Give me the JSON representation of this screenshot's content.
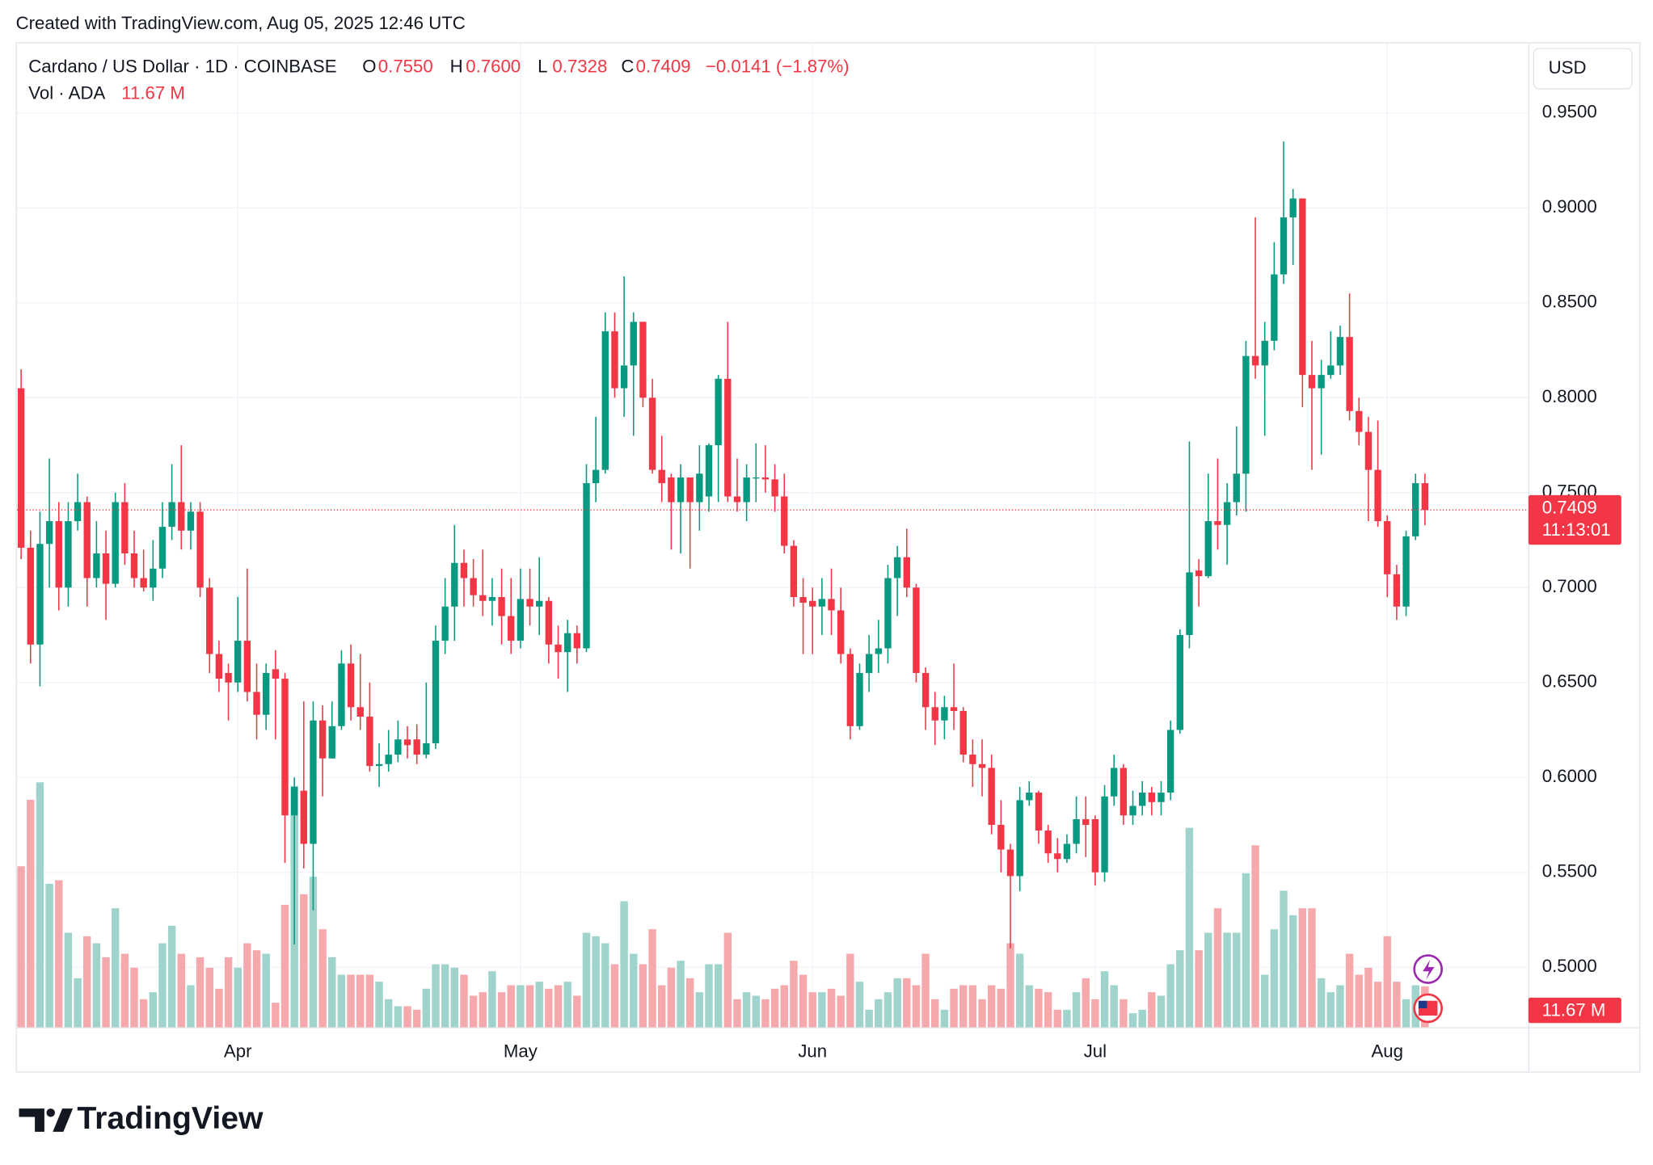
{
  "watermark": "Created with TradingView.com, Aug 05, 2025 12:46 UTC",
  "legend": {
    "symbol": "Cardano / US Dollar · 1D · COINBASE",
    "open_label": "O",
    "open": "0.7550",
    "high_label": "H",
    "high": "0.7600",
    "low_label": "L",
    "low": "0.7328",
    "close_label": "C",
    "close": "0.7409",
    "change": "−0.0141 (−1.87%)",
    "volume_label": "Vol · ADA",
    "volume": "11.67 M"
  },
  "currency": "USD",
  "last_price_label": "0.7409",
  "countdown": "11:13:01",
  "last_volume_label": "11.67 M",
  "brand": "TradingView",
  "chart_data": {
    "type": "candlestick",
    "categories": [
      null,
      null,
      null,
      null,
      null,
      null,
      null,
      null,
      null,
      null,
      null,
      null,
      null,
      null,
      null,
      null,
      null,
      null,
      null,
      null,
      null,
      null,
      null,
      "Apr",
      null,
      null,
      null,
      null,
      null,
      null,
      null,
      null,
      null,
      null,
      null,
      null,
      null,
      null,
      null,
      null,
      null,
      null,
      null,
      null,
      null,
      null,
      null,
      null,
      null,
      null,
      null,
      null,
      null,
      "May",
      null,
      null,
      null,
      null,
      null,
      null,
      null,
      null,
      null,
      null,
      null,
      null,
      null,
      null,
      null,
      null,
      null,
      null,
      null,
      null,
      null,
      null,
      null,
      null,
      null,
      null,
      null,
      null,
      null,
      null,
      "Jun",
      null,
      null,
      null,
      null,
      null,
      null,
      null,
      null,
      null,
      null,
      null,
      null,
      null,
      null,
      null,
      null,
      null,
      null,
      null,
      null,
      null,
      null,
      null,
      null,
      null,
      null,
      null,
      null,
      null,
      "Jul",
      null,
      null,
      null,
      null,
      null,
      null,
      null,
      null,
      null,
      null,
      null,
      null,
      null,
      null,
      null,
      null,
      null,
      null,
      null,
      null,
      null,
      null,
      null,
      null,
      null,
      null,
      null,
      null,
      null,
      null,
      "Aug",
      null,
      null,
      null,
      null
    ],
    "open": [
      0.805,
      0.721,
      0.67,
      0.723,
      0.735,
      0.7,
      0.735,
      0.745,
      0.705,
      0.718,
      0.702,
      0.745,
      0.718,
      0.705,
      0.7,
      0.71,
      0.732,
      0.745,
      0.73,
      0.74,
      0.7,
      0.665,
      0.655,
      0.65,
      0.672,
      0.645,
      0.633,
      0.657,
      0.652,
      0.58,
      0.593,
      0.565,
      0.63,
      0.61,
      0.627,
      0.66,
      0.637,
      0.632,
      0.606,
      0.607,
      0.612,
      0.62,
      0.62,
      0.612,
      0.618,
      0.672,
      0.69,
      0.713,
      0.705,
      0.696,
      0.693,
      0.695,
      0.685,
      0.672,
      0.694,
      0.69,
      0.693,
      0.67,
      0.666,
      0.676,
      0.668,
      0.755,
      0.762,
      0.835,
      0.805,
      0.817,
      0.84,
      0.8,
      0.762,
      0.758,
      0.745,
      0.758,
      0.745,
      0.748,
      0.775,
      0.81,
      0.748,
      0.745,
      0.758,
      0.758,
      0.757,
      0.748,
      0.722,
      0.695,
      0.693,
      0.69,
      0.694,
      0.688,
      0.665,
      0.627,
      0.655,
      0.665,
      0.668,
      0.705,
      0.716,
      0.7,
      0.655,
      0.637,
      0.63,
      0.637,
      0.635,
      0.612,
      0.607,
      0.605,
      0.575,
      0.562,
      0.548,
      0.588,
      0.592,
      0.572,
      0.56,
      0.557,
      0.565,
      0.578,
      0.578,
      0.55,
      0.59,
      0.605,
      0.58,
      0.585,
      0.592,
      0.587,
      0.592,
      0.625,
      0.675,
      0.709,
      0.706,
      0.735,
      0.733,
      0.745,
      0.76,
      0.822,
      0.817,
      0.83,
      0.865,
      0.895,
      0.905,
      0.812,
      0.805,
      0.812,
      0.817,
      0.832,
      0.793,
      0.782,
      0.762,
      0.735,
      0.707,
      0.69,
      0.727,
      0.755
    ],
    "high": [
      0.815,
      0.73,
      0.74,
      0.768,
      0.745,
      0.745,
      0.76,
      0.748,
      0.735,
      0.73,
      0.75,
      0.755,
      0.73,
      0.72,
      0.725,
      0.745,
      0.765,
      0.775,
      0.745,
      0.745,
      0.705,
      0.672,
      0.66,
      0.695,
      0.71,
      0.66,
      0.66,
      0.667,
      0.655,
      0.6,
      0.64,
      0.64,
      0.638,
      0.64,
      0.667,
      0.67,
      0.665,
      0.65,
      0.618,
      0.625,
      0.63,
      0.627,
      0.628,
      0.65,
      0.68,
      0.705,
      0.733,
      0.72,
      0.715,
      0.72,
      0.705,
      0.71,
      0.705,
      0.71,
      0.71,
      0.716,
      0.695,
      0.68,
      0.683,
      0.68,
      0.765,
      0.79,
      0.845,
      0.845,
      0.864,
      0.845,
      0.84,
      0.81,
      0.78,
      0.76,
      0.765,
      0.758,
      0.775,
      0.776,
      0.812,
      0.84,
      0.768,
      0.765,
      0.776,
      0.775,
      0.765,
      0.76,
      0.725,
      0.705,
      0.7,
      0.705,
      0.71,
      0.7,
      0.668,
      0.66,
      0.675,
      0.683,
      0.712,
      0.722,
      0.731,
      0.702,
      0.658,
      0.645,
      0.643,
      0.66,
      0.637,
      0.62,
      0.62,
      0.612,
      0.588,
      0.565,
      0.595,
      0.598,
      0.593,
      0.575,
      0.568,
      0.57,
      0.59,
      0.59,
      0.58,
      0.596,
      0.612,
      0.607,
      0.593,
      0.598,
      0.595,
      0.598,
      0.63,
      0.678,
      0.777,
      0.715,
      0.76,
      0.768,
      0.755,
      0.785,
      0.83,
      0.895,
      0.84,
      0.882,
      0.935,
      0.91,
      0.905,
      0.83,
      0.82,
      0.835,
      0.838,
      0.855,
      0.8,
      0.79,
      0.788,
      0.738,
      0.712,
      0.73,
      0.76,
      0.76
    ],
    "low": [
      0.715,
      0.66,
      0.648,
      0.7,
      0.688,
      0.69,
      0.73,
      0.69,
      0.7,
      0.683,
      0.7,
      0.712,
      0.7,
      0.698,
      0.693,
      0.705,
      0.725,
      0.72,
      0.72,
      0.695,
      0.655,
      0.645,
      0.63,
      0.645,
      0.64,
      0.62,
      0.625,
      0.62,
      0.555,
      0.512,
      0.552,
      0.53,
      0.59,
      0.61,
      0.625,
      0.63,
      0.625,
      0.603,
      0.595,
      0.603,
      0.608,
      0.61,
      0.607,
      0.61,
      0.615,
      0.665,
      0.672,
      0.69,
      0.69,
      0.685,
      0.68,
      0.67,
      0.665,
      0.668,
      0.68,
      0.675,
      0.66,
      0.652,
      0.645,
      0.66,
      0.666,
      0.745,
      0.76,
      0.8,
      0.79,
      0.78,
      0.795,
      0.76,
      0.745,
      0.72,
      0.718,
      0.71,
      0.73,
      0.74,
      0.745,
      0.745,
      0.74,
      0.735,
      0.745,
      0.75,
      0.74,
      0.718,
      0.69,
      0.665,
      0.665,
      0.675,
      0.675,
      0.66,
      0.62,
      0.625,
      0.645,
      0.655,
      0.66,
      0.685,
      0.695,
      0.65,
      0.625,
      0.617,
      0.62,
      0.625,
      0.608,
      0.595,
      0.59,
      0.57,
      0.55,
      0.51,
      0.54,
      0.585,
      0.565,
      0.555,
      0.55,
      0.555,
      0.56,
      0.558,
      0.543,
      0.545,
      0.585,
      0.575,
      0.575,
      0.58,
      0.58,
      0.58,
      0.588,
      0.623,
      0.668,
      0.69,
      0.705,
      0.72,
      0.712,
      0.738,
      0.74,
      0.81,
      0.78,
      0.825,
      0.86,
      0.87,
      0.795,
      0.762,
      0.77,
      0.81,
      0.812,
      0.788,
      0.775,
      0.735,
      0.732,
      0.695,
      0.683,
      0.685,
      0.725,
      0.7328
    ],
    "close": [
      0.721,
      0.67,
      0.723,
      0.735,
      0.7,
      0.735,
      0.745,
      0.705,
      0.718,
      0.702,
      0.745,
      0.718,
      0.705,
      0.7,
      0.71,
      0.732,
      0.745,
      0.73,
      0.74,
      0.7,
      0.665,
      0.652,
      0.65,
      0.672,
      0.645,
      0.633,
      0.655,
      0.652,
      0.58,
      0.595,
      0.565,
      0.63,
      0.61,
      0.627,
      0.66,
      0.637,
      0.632,
      0.606,
      0.607,
      0.612,
      0.62,
      0.617,
      0.612,
      0.618,
      0.672,
      0.69,
      0.713,
      0.705,
      0.696,
      0.693,
      0.695,
      0.685,
      0.672,
      0.694,
      0.69,
      0.693,
      0.67,
      0.666,
      0.676,
      0.668,
      0.755,
      0.762,
      0.835,
      0.805,
      0.817,
      0.84,
      0.8,
      0.762,
      0.755,
      0.745,
      0.758,
      0.745,
      0.76,
      0.775,
      0.81,
      0.748,
      0.745,
      0.758,
      0.758,
      0.757,
      0.748,
      0.722,
      0.695,
      0.692,
      0.69,
      0.694,
      0.688,
      0.665,
      0.627,
      0.655,
      0.665,
      0.668,
      0.705,
      0.716,
      0.7,
      0.655,
      0.637,
      0.63,
      0.637,
      0.635,
      0.612,
      0.607,
      0.605,
      0.575,
      0.562,
      0.548,
      0.588,
      0.592,
      0.572,
      0.56,
      0.557,
      0.565,
      0.578,
      0.575,
      0.55,
      0.59,
      0.605,
      0.58,
      0.585,
      0.592,
      0.587,
      0.592,
      0.625,
      0.675,
      0.708,
      0.706,
      0.735,
      0.733,
      0.745,
      0.76,
      0.822,
      0.817,
      0.83,
      0.865,
      0.895,
      0.905,
      0.812,
      0.805,
      0.812,
      0.817,
      0.832,
      0.793,
      0.782,
      0.762,
      0.735,
      0.707,
      0.69,
      0.727,
      0.755,
      0.7409
    ],
    "volume": [
      46,
      65,
      70,
      41,
      42,
      27,
      14,
      26,
      24,
      20,
      34,
      21,
      17,
      8,
      10,
      24,
      29,
      21,
      12,
      20,
      17,
      11,
      20,
      17,
      24,
      22,
      21,
      7,
      35,
      69,
      38,
      43,
      28,
      20,
      15,
      15,
      15,
      15,
      13,
      8,
      6,
      6,
      5,
      11,
      18,
      18,
      17,
      15,
      9,
      10,
      16,
      10,
      12,
      12,
      12,
      13,
      11,
      12,
      13,
      9,
      27,
      26,
      24,
      18,
      36,
      21,
      18,
      28,
      12,
      17,
      19,
      14,
      10,
      18,
      18,
      27,
      8,
      10,
      9,
      8,
      11,
      12,
      19,
      15,
      10,
      10,
      11,
      9,
      21,
      13,
      5,
      8,
      10,
      14,
      14,
      12,
      21,
      8,
      5,
      11,
      12,
      12,
      8,
      12,
      11,
      24,
      21,
      12,
      11,
      10,
      5,
      5,
      10,
      14,
      8,
      16,
      12,
      8,
      4,
      5,
      10,
      9,
      18,
      22,
      57,
      22,
      27,
      34,
      27,
      27,
      44,
      52,
      15,
      28,
      39,
      32,
      34,
      34,
      14,
      10,
      12,
      21,
      15,
      17,
      13,
      26,
      13,
      8,
      12,
      11.67
    ],
    "ylim": [
      0.4684,
      0.9845
    ],
    "yticks": [
      {
        "value": 0.5,
        "label": "0.5000"
      },
      {
        "value": 0.55,
        "label": "0.5500"
      },
      {
        "value": 0.6,
        "label": "0.6000"
      },
      {
        "value": 0.65,
        "label": "0.6500"
      },
      {
        "value": 0.7,
        "label": "0.7000"
      },
      {
        "value": 0.75,
        "label": "0.7500"
      },
      {
        "value": 0.8,
        "label": "0.8000"
      },
      {
        "value": 0.85,
        "label": "0.8500"
      },
      {
        "value": 0.9,
        "label": "0.9000"
      },
      {
        "value": 0.95,
        "label": "0.9500"
      }
    ],
    "last_price": 0.7409,
    "up_color": "#089981",
    "down_color": "#f23645",
    "up_volume_color": "#9fd3cc",
    "down_volume_color": "#f5a9ad",
    "grid": true
  }
}
